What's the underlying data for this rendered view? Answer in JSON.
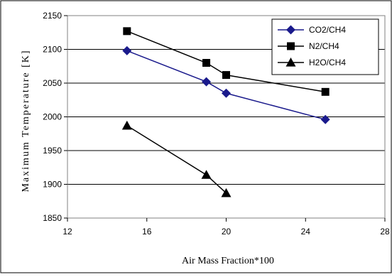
{
  "chart_data": {
    "type": "line",
    "xlabel": "Air Mass Fraction*100",
    "ylabel": "Maximum Temperature [K]",
    "xlim": [
      12,
      28
    ],
    "ylim": [
      1850,
      2150
    ],
    "x_ticks": [
      "12",
      "16",
      "20",
      "24",
      "28"
    ],
    "y_ticks": [
      "1850",
      "1900",
      "1950",
      "2000",
      "2050",
      "2100",
      "2150"
    ],
    "grid": "horizontal",
    "legend_position": "top-right",
    "series": [
      {
        "name": "CO2/CH4",
        "color": "#1a1a8c",
        "marker": "diamond",
        "x": [
          15,
          19,
          20,
          25
        ],
        "y": [
          2098,
          2052,
          2035,
          1996
        ]
      },
      {
        "name": "N2/CH4",
        "color": "#000000",
        "marker": "square",
        "x": [
          15,
          19,
          20,
          25
        ],
        "y": [
          2127,
          2080,
          2062,
          2037
        ]
      },
      {
        "name": "H2O/CH4",
        "color": "#000000",
        "marker": "triangle",
        "x": [
          15,
          19,
          20
        ],
        "y": [
          1987,
          1914,
          1887
        ]
      }
    ]
  }
}
